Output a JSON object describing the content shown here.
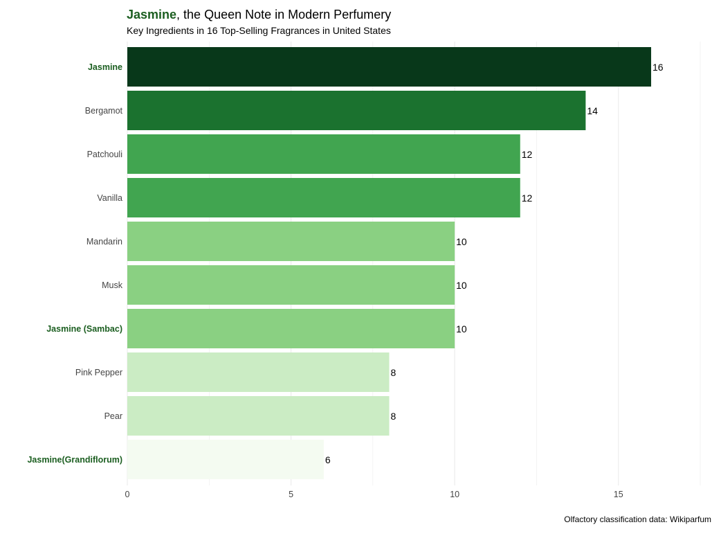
{
  "chart_data": {
    "type": "bar",
    "orientation": "horizontal",
    "title": {
      "highlight": "Jasmine",
      "rest": ", the Queen Note in Modern Perfumery"
    },
    "subtitle": "Key Ingredients in 16 Top-Selling Fragrances in United States",
    "caption": "Olfactory classification data: Wikiparfum",
    "xlim": [
      0,
      17.5
    ],
    "x_ticks": [
      0,
      5,
      10,
      15
    ],
    "grid": true,
    "legend": "none",
    "colors": {
      "title_highlight": "#1b5e20",
      "highlight_label": "#1b5e20",
      "default_label": "#444444",
      "grid": "#ebebeb",
      "value_label": "#000000"
    },
    "categories": [
      "Jasmine",
      "Bergamot",
      "Patchouli",
      "Vanilla",
      "Mandarin",
      "Musk",
      "Jasmine (Sambac)",
      "Pink Pepper",
      "Pear",
      "Jasmine(Grandiflorum)"
    ],
    "values": [
      16,
      14,
      12,
      12,
      10,
      10,
      10,
      8,
      8,
      6
    ],
    "highlighted": [
      true,
      false,
      false,
      false,
      false,
      false,
      true,
      false,
      false,
      true
    ],
    "bar_colors": [
      "#08381a",
      "#1b722f",
      "#41a550",
      "#41a550",
      "#8ad082",
      "#8ad082",
      "#8ad082",
      "#cbecc4",
      "#cbecc4",
      "#f4fbf1"
    ]
  }
}
